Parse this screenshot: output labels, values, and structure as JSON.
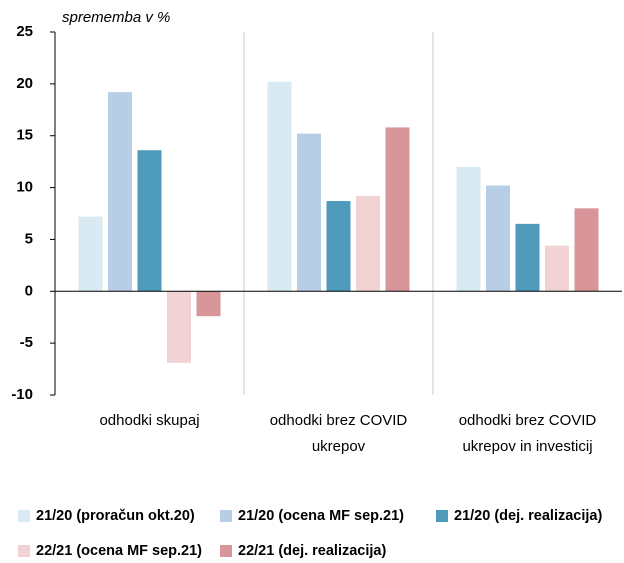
{
  "chart_data": {
    "type": "bar",
    "y_label": "sprememba v %",
    "categories": [
      [
        "odhodki skupaj"
      ],
      [
        "odhodki brez COVID",
        "ukrepov"
      ],
      [
        "odhodki brez COVID",
        "ukrepov in investicij"
      ]
    ],
    "series": [
      {
        "name": "21/20 (proračun okt.20)",
        "color": "#d9eaf2",
        "values": [
          7.2,
          20.2,
          12.0
        ]
      },
      {
        "name": "21/20 (ocena MF sep.21)",
        "color": "#b8cde6",
        "values": [
          19.2,
          15.2,
          10.2
        ]
      },
      {
        "name": "21/20 (dej. realizacija)",
        "color": "#4e9aba",
        "values": [
          13.6,
          8.7,
          6.5
        ]
      },
      {
        "name": "22/21 (ocena MF sep.21)",
        "color": "#f2d3d5",
        "values": [
          -6.9,
          9.2,
          4.4
        ]
      },
      {
        "name": "22/21 (dej. realizacija)",
        "color": "#d9969a",
        "values": [
          -2.4,
          15.8,
          8.0
        ]
      }
    ],
    "ylim": [
      -10,
      25
    ],
    "yticks": [
      -10,
      -5,
      0,
      5,
      10,
      15,
      20,
      25
    ]
  }
}
